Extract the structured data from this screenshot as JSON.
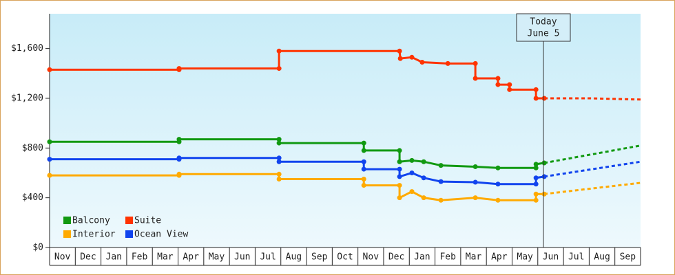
{
  "chart_data": {
    "type": "step-line",
    "categories": [
      "Nov",
      "Dec",
      "Jan",
      "Feb",
      "Mar",
      "Apr",
      "May",
      "Jun",
      "Jul",
      "Aug",
      "Sep",
      "Oct",
      "Nov",
      "Dec",
      "Jan",
      "Feb",
      "Mar",
      "Apr",
      "May",
      "Jun",
      "Jul",
      "Aug",
      "Sep"
    ],
    "xlim": [
      0,
      23
    ],
    "ylim": [
      0,
      1880
    ],
    "yticks": [
      {
        "value": 0,
        "label": "$0"
      },
      {
        "value": 400,
        "label": "$400"
      },
      {
        "value": 800,
        "label": "$800"
      },
      {
        "value": 1200,
        "label": "$1,200"
      },
      {
        "value": 1600,
        "label": "$1,600"
      }
    ],
    "today": {
      "x": 19.22,
      "label": [
        "Today",
        "June 5"
      ]
    },
    "series": [
      {
        "name": "Balcony",
        "color": "#119911",
        "x": [
          0,
          5.04,
          5.04,
          8.93,
          8.93,
          12.23,
          12.23,
          13.62,
          13.62,
          14.1,
          14.56,
          15.23,
          16.57,
          17.45,
          18.93,
          18.93,
          19.25
        ],
        "values": [
          850,
          850,
          870,
          870,
          840,
          840,
          780,
          780,
          690,
          700,
          690,
          660,
          650,
          640,
          640,
          670,
          680
        ],
        "forecast_x": [
          19.25,
          23
        ],
        "forecast_values": [
          680,
          820
        ]
      },
      {
        "name": "Suite",
        "color": "#ff3300",
        "x": [
          0,
          5.04,
          5.04,
          8.93,
          8.93,
          13.62,
          13.65,
          14.1,
          14.5,
          15.5,
          16.57,
          16.57,
          17.45,
          17.45,
          17.9,
          17.9,
          18.93,
          18.93,
          19.25
        ],
        "values": [
          1430,
          1430,
          1440,
          1440,
          1580,
          1580,
          1520,
          1530,
          1490,
          1480,
          1480,
          1360,
          1360,
          1310,
          1310,
          1270,
          1270,
          1200,
          1200
        ],
        "forecast_x": [
          19.25,
          21,
          23
        ],
        "forecast_values": [
          1200,
          1200,
          1190
        ]
      },
      {
        "name": "Interior",
        "color": "#ffaa00",
        "x": [
          0,
          5.04,
          5.04,
          8.93,
          8.93,
          12.23,
          12.23,
          13.62,
          13.62,
          14.1,
          14.56,
          15.23,
          16.57,
          17.45,
          18.93,
          18.93,
          19.25
        ],
        "values": [
          580,
          580,
          590,
          590,
          550,
          550,
          500,
          500,
          400,
          450,
          400,
          380,
          400,
          380,
          380,
          430,
          430
        ],
        "forecast_x": [
          19.25,
          23
        ],
        "forecast_values": [
          430,
          520
        ]
      },
      {
        "name": "Ocean View",
        "color": "#1144ee",
        "x": [
          0,
          5.04,
          5.04,
          8.93,
          8.93,
          12.23,
          12.23,
          13.62,
          13.62,
          14.1,
          14.56,
          15.23,
          16.57,
          17.45,
          18.93,
          18.93,
          19.25
        ],
        "values": [
          710,
          710,
          720,
          720,
          690,
          690,
          630,
          630,
          570,
          600,
          560,
          530,
          525,
          510,
          510,
          560,
          570
        ],
        "forecast_x": [
          19.25,
          23
        ],
        "forecast_values": [
          570,
          690
        ]
      }
    ]
  }
}
